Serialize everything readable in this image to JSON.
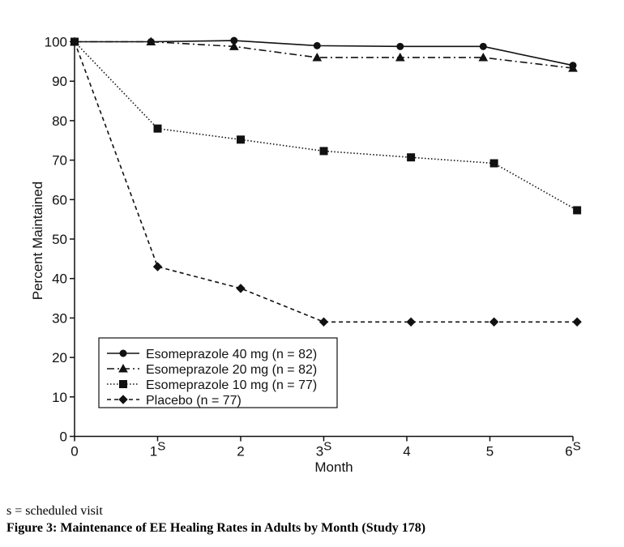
{
  "chart_data": {
    "type": "line",
    "xlabel": "Month",
    "ylabel": "Percent Maintained",
    "ylim": [
      0,
      100
    ],
    "xlim": [
      0,
      6
    ],
    "yticks": [
      0,
      10,
      20,
      30,
      40,
      50,
      60,
      70,
      80,
      90,
      100
    ],
    "xticks": [
      {
        "value": 0,
        "label": "0",
        "sup": ""
      },
      {
        "value": 1,
        "label": "1",
        "sup": "S"
      },
      {
        "value": 2,
        "label": "2",
        "sup": ""
      },
      {
        "value": 3,
        "label": "3",
        "sup": "S"
      },
      {
        "value": 4,
        "label": "4",
        "sup": ""
      },
      {
        "value": 5,
        "label": "5",
        "sup": ""
      },
      {
        "value": 6,
        "label": "6",
        "sup": "S"
      }
    ],
    "legend_position": "bottom-left",
    "grid": false,
    "series": [
      {
        "name": "Esomeprazole 40 mg (n = 82)",
        "marker": "circle",
        "dash": "solid",
        "x": [
          0,
          0.92,
          1.92,
          2.92,
          3.92,
          4.92,
          6.0
        ],
        "y": [
          100,
          100,
          100.3,
          99,
          98.8,
          98.8,
          94
        ]
      },
      {
        "name": "Esomeprazole 20 mg (n = 82)",
        "marker": "triangle",
        "dash": "dashdot",
        "x": [
          0,
          0.92,
          1.92,
          2.92,
          3.92,
          4.92,
          6.0
        ],
        "y": [
          100,
          100,
          98.8,
          96,
          96,
          96,
          93.3
        ]
      },
      {
        "name": "Esomeprazole 10 mg (n = 77)",
        "marker": "square",
        "dash": "dotted",
        "x": [
          0,
          1.0,
          2.0,
          3.0,
          4.05,
          5.05,
          6.05
        ],
        "y": [
          100,
          78,
          75.2,
          72.3,
          70.7,
          69.2,
          57.3
        ]
      },
      {
        "name": "Placebo (n = 77)",
        "marker": "diamond",
        "dash": "dashed",
        "x": [
          0,
          1.0,
          2.0,
          3.0,
          4.05,
          5.05,
          6.05
        ],
        "y": [
          100,
          43,
          37.5,
          29,
          29,
          29,
          29
        ]
      }
    ]
  },
  "footnote": "s = scheduled visit",
  "caption": "Figure 3: Maintenance of EE Healing Rates in Adults by Month (Study 178)"
}
